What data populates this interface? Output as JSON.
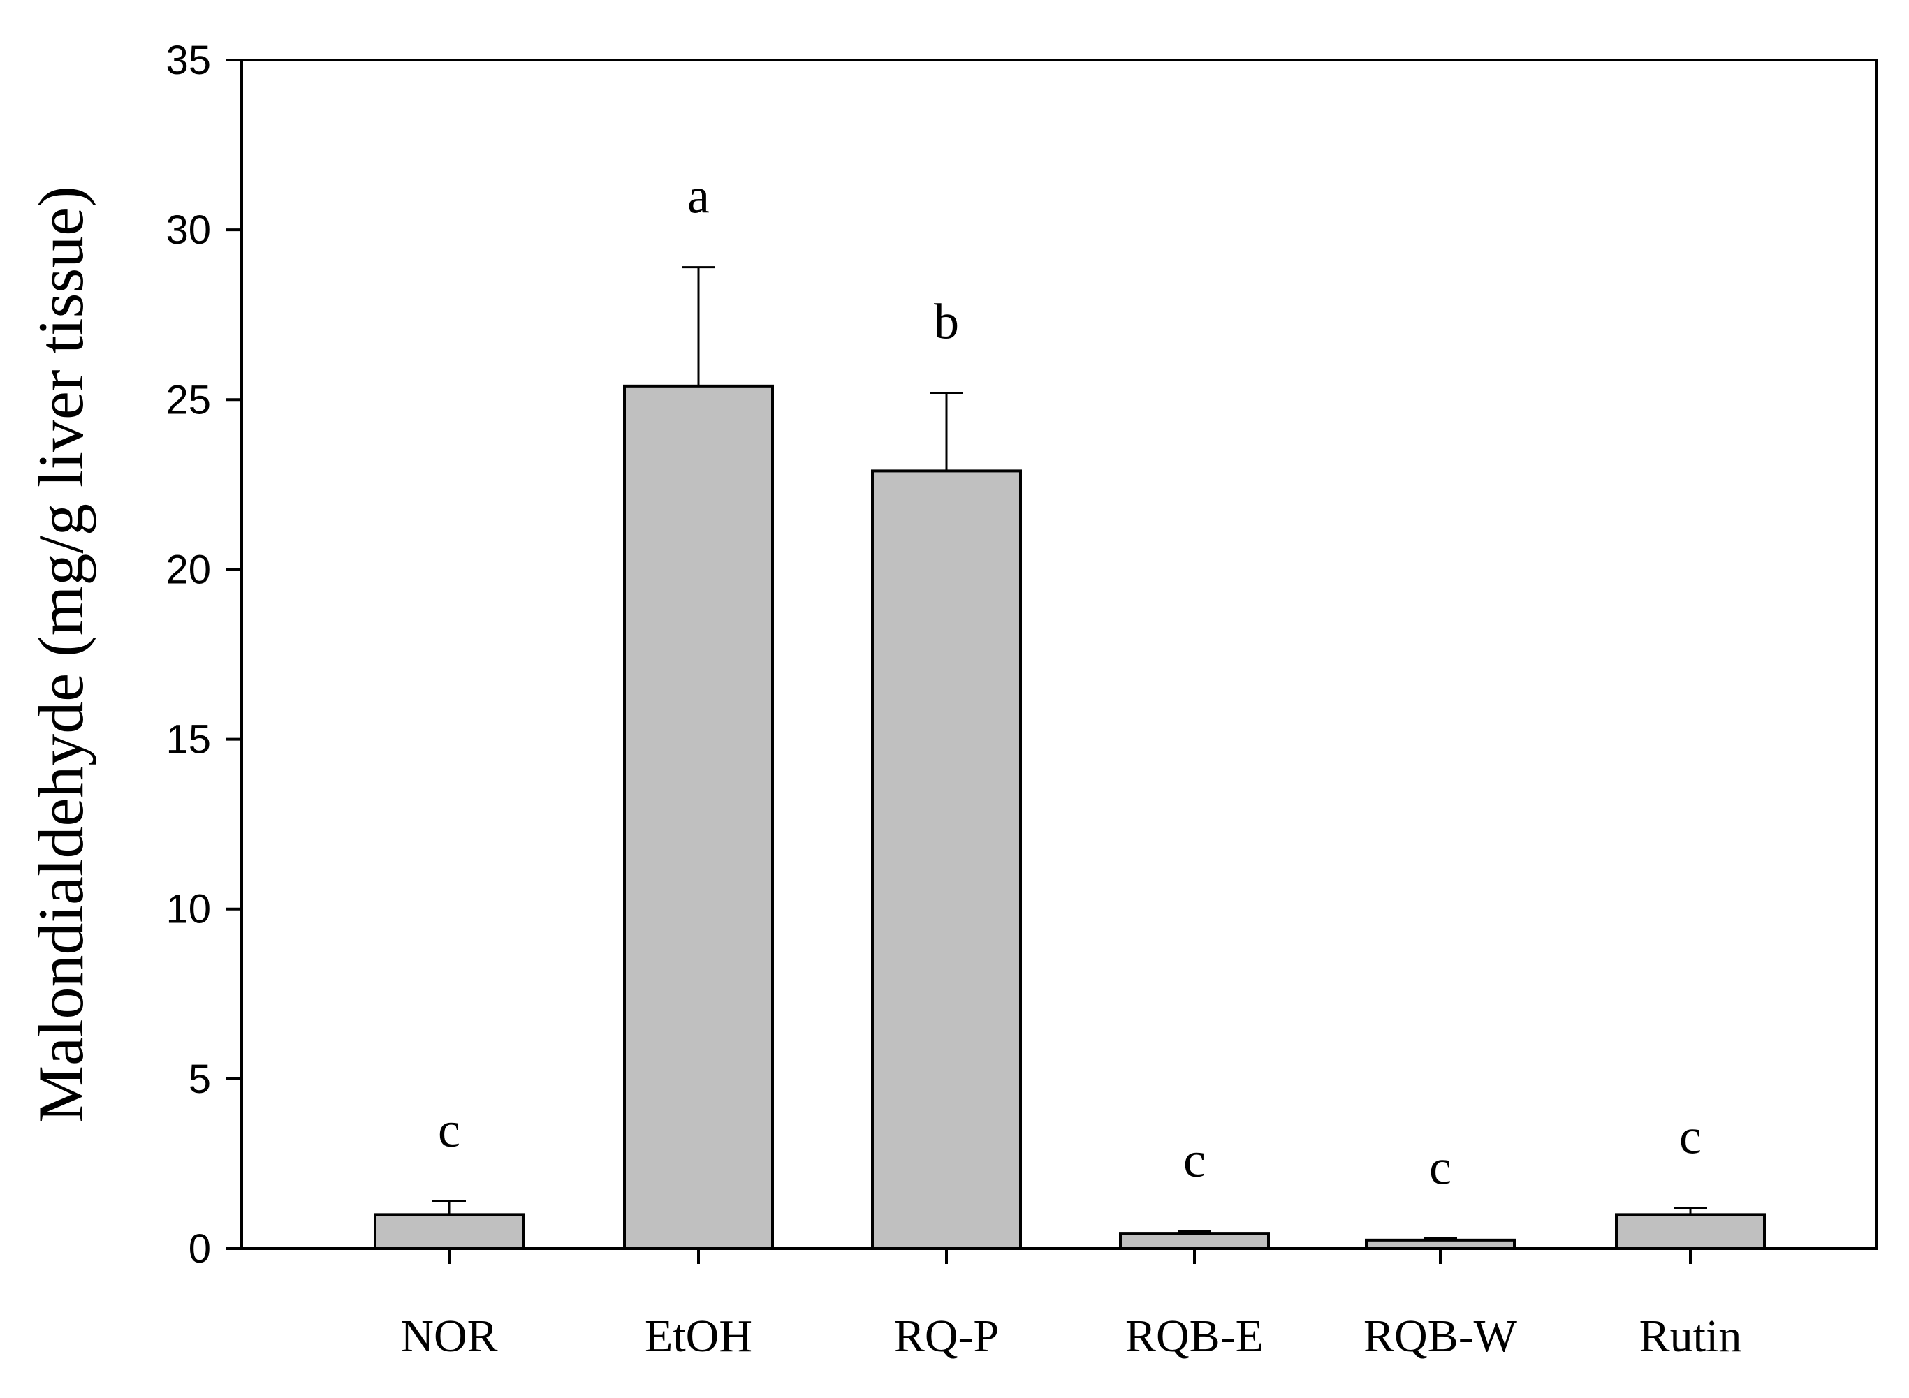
{
  "chart_data": {
    "type": "bar",
    "title": "",
    "xlabel": "",
    "ylabel": "Malondialdehyde (mg/g liver tissue)",
    "ylim": [
      0,
      35
    ],
    "yticks": [
      0,
      5,
      10,
      15,
      20,
      25,
      30,
      35
    ],
    "grid": false,
    "legend": "none",
    "categories": [
      "NOR",
      "EtOH",
      "RQ-P",
      "RQB-E",
      "RQB-W",
      "Rutin"
    ],
    "values": [
      1.0,
      25.4,
      22.9,
      0.45,
      0.25,
      1.0
    ],
    "errors": [
      0.4,
      3.5,
      2.3,
      0.06,
      0.05,
      0.2
    ],
    "significance": [
      "c",
      "a",
      "b",
      "c",
      "c",
      "c"
    ],
    "colors": {
      "bar": "#c0c0c0",
      "outline": "#000000"
    }
  }
}
